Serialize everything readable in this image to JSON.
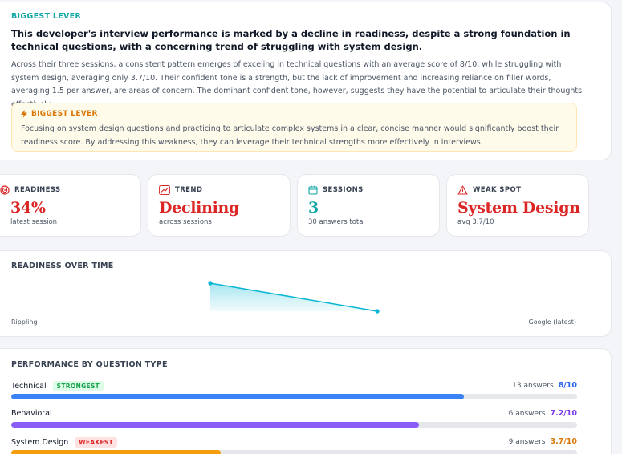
{
  "summary": {
    "eyebrow": "BIGGEST LEVER",
    "headline": "This developer's interview performance is marked by a decline in readiness, despite a strong foundation in technical questions, with a concerning trend of struggling with system design.",
    "body": "Across their three sessions, a consistent pattern emerges of exceling in technical questions with an average score of 8/10, while struggling with system design, averaging only 3.7/10. Their confident tone is a strength, but the lack of improvement and increasing reliance on filler words, averaging 1.5 per answer, are areas of concern. The dominant confident tone, however, suggests they have the potential to articulate their thoughts effectively.",
    "lever_title": "BIGGEST LEVER",
    "lever_text": "Focusing on system design questions and practicing to articulate complex systems in a clear, concise manner would significantly boost their readiness score. By addressing this weakness, they can leverage their technical strengths more effectively in interviews."
  },
  "stats": {
    "readiness": {
      "label": "READINESS",
      "value": "34%",
      "sub": "latest session",
      "color": "#dc2626",
      "icon": "target-icon"
    },
    "trend": {
      "label": "TREND",
      "value": "Declining",
      "sub": "across sessions",
      "color": "#dc2626",
      "icon": "trend-icon"
    },
    "sessions": {
      "label": "SESSIONS",
      "value": "3",
      "sub": "30 answers total",
      "color": "#0ea5a4",
      "icon": "calendar-icon"
    },
    "weak_spot": {
      "label": "WEAK SPOT",
      "value": "System Design",
      "sub": "avg 3.7/10",
      "color": "#dc2626",
      "icon": "warning-icon"
    }
  },
  "over_time": {
    "title": "READINESS OVER TIME",
    "start_label": "Rippling",
    "end_label": "Google (latest)",
    "points": [
      {
        "session": "Rippling",
        "readiness": 62
      },
      {
        "session": "",
        "readiness": 48
      },
      {
        "session": "Google (latest)",
        "readiness": 34
      }
    ],
    "line_color": "#06b6d4"
  },
  "performance": {
    "title": "PERFORMANCE BY QUESTION TYPE",
    "rows": [
      {
        "name": "Technical",
        "badge": "STRONGEST",
        "answers": "13 answers",
        "score": "8/10",
        "value": 8,
        "color": "#3b82f6",
        "score_color": "#2563eb"
      },
      {
        "name": "Behavioral",
        "badge": "",
        "answers": "6 answers",
        "score": "7.2/10",
        "value": 7.2,
        "color": "#8b5cf6",
        "score_color": "#7c3aed"
      },
      {
        "name": "System Design",
        "badge": "WEAKEST",
        "answers": "9 answers",
        "score": "3.7/10",
        "value": 3.7,
        "color": "#f59e0b",
        "score_color": "#d97706"
      }
    ]
  }
}
